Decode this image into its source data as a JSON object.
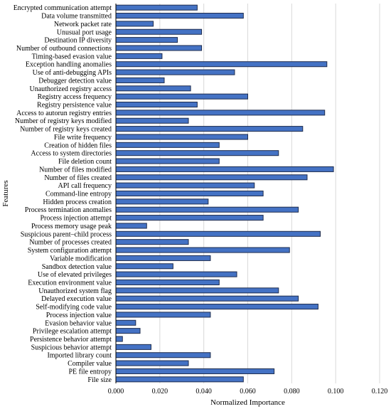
{
  "chart_data": {
    "type": "bar",
    "orientation": "horizontal",
    "xlabel": "Normalized Importance",
    "ylabel": "Features",
    "xlim": [
      0,
      0.12
    ],
    "xticks": [
      "0.000",
      "0.020",
      "0.040",
      "0.060",
      "0.080",
      "0.100",
      "0.120"
    ],
    "grid": "vertical",
    "bar_color": "#4472c4",
    "bar_edge_color": "#1f2d4e",
    "categories": [
      "Encrypted communication attempt",
      "Data volume transmitted",
      "Network packet rate",
      "Unusual port usage",
      "Destination IP diversity",
      "Number of outbound connections",
      "Timing-based evasion value",
      "Exception handling anomalies",
      "Use of anti-debugging APIs",
      "Debugger detection value",
      "Unauthorized registry access",
      "Registry access frequency",
      "Registry persistence value",
      "Access to autorun registry entries",
      "Number of registry keys modified",
      "Number of registry keys created",
      "File write frequency",
      "Creation of hidden files",
      "Access to system directories",
      "File deletion count",
      "Number of files modified",
      "Number of files created",
      "API call frequency",
      "Command-line entropy",
      "Hidden process creation",
      "Process termination anomalies",
      "Process injection attempt",
      "Process memory usage peak",
      "Suspicious parent–child process",
      "Number of processes created",
      "System configuration attempt",
      "Variable modification",
      "Sandbox detection value",
      "Use of elevated privileges",
      "Execution environment value",
      "Unauthorized system flag",
      "Delayed execution value",
      "Self-modifying code value",
      "Process injection value",
      "Evasion behavior value",
      "Privilege escalation attempt",
      "Persistence behavior attempt",
      "Suspicious behavior attempt",
      "Imported library count",
      "Compiler value",
      "PE file entropy",
      "File size"
    ],
    "values": [
      0.037,
      0.058,
      0.017,
      0.039,
      0.028,
      0.039,
      0.021,
      0.096,
      0.054,
      0.022,
      0.034,
      0.06,
      0.037,
      0.095,
      0.033,
      0.085,
      0.06,
      0.047,
      0.074,
      0.047,
      0.099,
      0.087,
      0.063,
      0.067,
      0.042,
      0.083,
      0.067,
      0.014,
      0.093,
      0.033,
      0.079,
      0.043,
      0.026,
      0.055,
      0.047,
      0.074,
      0.083,
      0.092,
      0.043,
      0.009,
      0.011,
      0.003,
      0.016,
      0.043,
      0.033,
      0.072,
      0.058
    ]
  }
}
